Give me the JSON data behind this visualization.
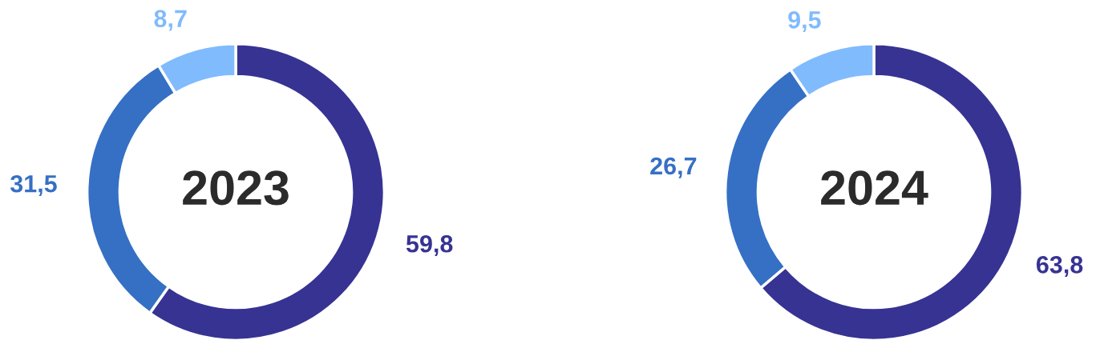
{
  "chart_data": [
    {
      "type": "donut",
      "title": "2023",
      "categories": [
        null,
        null,
        null
      ],
      "values": [
        59.8,
        31.5,
        8.7
      ],
      "value_labels": [
        "59,8",
        "31,5",
        "8,7"
      ],
      "colors": [
        "#373393",
        "#3570c4",
        "#80bbfd"
      ]
    },
    {
      "type": "donut",
      "title": "2024",
      "categories": [
        null,
        null,
        null
      ],
      "values": [
        63.8,
        26.7,
        9.5
      ],
      "value_labels": [
        "63,8",
        "26,7",
        "9,5"
      ],
      "colors": [
        "#373393",
        "#3570c4",
        "#80bbfd"
      ]
    }
  ]
}
